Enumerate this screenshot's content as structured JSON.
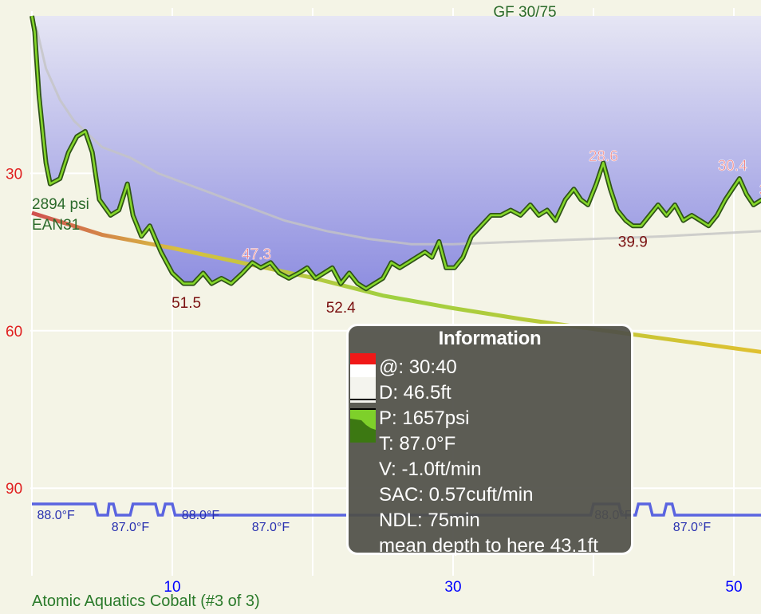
{
  "title": "GF 30/75",
  "footer_label": "Atomic Aquatics Cobalt (#3 of 3)",
  "tank": {
    "pressure": "2894 psi",
    "gas": "EAN31"
  },
  "colors": {
    "background": "#f4f4e6",
    "depth_fill_top": "#a8a8e0",
    "depth_line": "#3f6e1f",
    "depth_line_highlight": "#7fd020",
    "ceiling": "#c2c2c2",
    "pressure_line": "#b8c840",
    "temperature_line": "#5a64e0",
    "depth_axis_text": "#e02020",
    "time_axis_text": "#0000ff",
    "annotation_max": "#7a1010",
    "annotation_min": "#f08080",
    "temp_label": "#2830b0",
    "title_text": "#2a6a2a"
  },
  "chart_data": {
    "type": "line",
    "xlabel": "",
    "ylabel": "",
    "x_ticks": [
      "10",
      "30",
      "50"
    ],
    "y_ticks": [
      "30",
      "60",
      "90"
    ],
    "xlim": [
      0,
      52
    ],
    "ylim": [
      0,
      105
    ],
    "y_inverted": true,
    "grid": true,
    "series": [
      {
        "name": "depth",
        "unit": "ft",
        "points": [
          [
            0,
            0
          ],
          [
            0.2,
            3
          ],
          [
            0.5,
            15
          ],
          [
            0.8,
            23
          ],
          [
            1.0,
            28
          ],
          [
            1.3,
            32
          ],
          [
            2.0,
            31
          ],
          [
            2.6,
            26
          ],
          [
            3.2,
            23
          ],
          [
            3.8,
            22
          ],
          [
            4.3,
            26
          ],
          [
            4.8,
            35
          ],
          [
            5.6,
            38
          ],
          [
            6.2,
            37
          ],
          [
            6.8,
            32
          ],
          [
            7.2,
            38
          ],
          [
            7.8,
            42
          ],
          [
            8.4,
            40
          ],
          [
            9.2,
            45
          ],
          [
            10.0,
            49
          ],
          [
            10.8,
            51
          ],
          [
            11.5,
            51
          ],
          [
            12.2,
            49
          ],
          [
            12.8,
            51
          ],
          [
            13.5,
            50
          ],
          [
            14.2,
            51
          ],
          [
            15.0,
            49
          ],
          [
            15.7,
            47
          ],
          [
            16.3,
            48
          ],
          [
            17.0,
            47
          ],
          [
            17.6,
            49
          ],
          [
            18.3,
            50
          ],
          [
            19.0,
            49
          ],
          [
            19.6,
            48
          ],
          [
            20.2,
            50
          ],
          [
            20.8,
            49
          ],
          [
            21.4,
            48
          ],
          [
            22.0,
            51
          ],
          [
            22.6,
            49
          ],
          [
            23.2,
            51
          ],
          [
            23.8,
            52
          ],
          [
            24.4,
            51
          ],
          [
            25.0,
            50
          ],
          [
            25.6,
            47
          ],
          [
            26.2,
            48
          ],
          [
            26.8,
            47
          ],
          [
            27.4,
            46
          ],
          [
            28.0,
            45
          ],
          [
            28.5,
            46
          ],
          [
            29.0,
            43
          ],
          [
            29.5,
            48
          ],
          [
            30.1,
            48
          ],
          [
            30.7,
            46
          ],
          [
            31.3,
            42
          ],
          [
            32.0,
            40
          ],
          [
            32.7,
            38
          ],
          [
            33.4,
            38
          ],
          [
            34.1,
            37
          ],
          [
            34.8,
            38
          ],
          [
            35.5,
            36
          ],
          [
            36.1,
            38
          ],
          [
            36.7,
            37
          ],
          [
            37.3,
            39
          ],
          [
            38.0,
            35
          ],
          [
            38.6,
            33
          ],
          [
            39.1,
            35
          ],
          [
            39.6,
            36
          ],
          [
            40.2,
            32
          ],
          [
            40.7,
            28
          ],
          [
            41.2,
            33
          ],
          [
            41.7,
            37
          ],
          [
            42.3,
            39
          ],
          [
            42.8,
            40
          ],
          [
            43.4,
            40
          ],
          [
            44.0,
            38
          ],
          [
            44.6,
            36
          ],
          [
            45.2,
            38
          ],
          [
            45.8,
            36
          ],
          [
            46.4,
            39
          ],
          [
            47.0,
            38
          ],
          [
            47.6,
            39
          ],
          [
            48.2,
            40
          ],
          [
            48.8,
            38
          ],
          [
            49.4,
            35
          ],
          [
            49.9,
            33
          ],
          [
            50.4,
            31
          ],
          [
            50.9,
            34
          ],
          [
            51.4,
            36
          ],
          [
            52,
            35
          ]
        ]
      },
      {
        "name": "ceiling",
        "unit": "ft",
        "points": [
          [
            0.3,
            2
          ],
          [
            1.0,
            10
          ],
          [
            2.0,
            16
          ],
          [
            3.0,
            20
          ],
          [
            5.0,
            25
          ],
          [
            7.0,
            27
          ],
          [
            9.0,
            30
          ],
          [
            12.0,
            33
          ],
          [
            15.0,
            36
          ],
          [
            18.0,
            39
          ],
          [
            21.0,
            41
          ],
          [
            24.0,
            42.5
          ],
          [
            27.0,
            43.5
          ],
          [
            30.0,
            43.5
          ],
          [
            35.0,
            43
          ],
          [
            40.0,
            42.5
          ],
          [
            45.0,
            42
          ],
          [
            52.0,
            41
          ]
        ]
      },
      {
        "name": "tank pressure",
        "unit": "psi",
        "points": [
          [
            0,
            2894
          ],
          [
            5,
            2600
          ],
          [
            10,
            2420
          ],
          [
            15,
            2220
          ],
          [
            20,
            2020
          ],
          [
            25,
            1780
          ],
          [
            30,
            1610
          ],
          [
            35,
            1460
          ],
          [
            40,
            1330
          ],
          [
            45,
            1200
          ],
          [
            52,
            1020
          ]
        ]
      },
      {
        "name": "temperature",
        "unit": "°F",
        "points": [
          [
            0,
            88.0
          ],
          [
            4.5,
            88.0
          ],
          [
            4.7,
            87.0
          ],
          [
            5.4,
            87.0
          ],
          [
            5.5,
            88.0
          ],
          [
            5.8,
            88.0
          ],
          [
            6.0,
            87.0
          ],
          [
            7.0,
            87.0
          ],
          [
            7.2,
            88.0
          ],
          [
            8.8,
            88.0
          ],
          [
            9.0,
            87.0
          ],
          [
            9.3,
            87.0
          ],
          [
            9.5,
            88.0
          ],
          [
            10.0,
            88.0
          ],
          [
            10.2,
            87.0
          ],
          [
            39.8,
            87.0
          ],
          [
            40.0,
            88.0
          ],
          [
            41.8,
            88.0
          ],
          [
            42.0,
            87.0
          ],
          [
            43.0,
            87.0
          ],
          [
            43.2,
            88.0
          ],
          [
            44.0,
            88.0
          ],
          [
            44.2,
            87.0
          ],
          [
            45.0,
            87.0
          ],
          [
            45.2,
            88.0
          ],
          [
            45.6,
            88.0
          ],
          [
            45.8,
            87.0
          ],
          [
            52.0,
            87.0
          ]
        ]
      }
    ],
    "depth_annotations": [
      {
        "label": "51.5",
        "kind": "max",
        "x": 11,
        "y": 51.5
      },
      {
        "label": "47.3",
        "kind": "min",
        "x": 16,
        "y": 47.3
      },
      {
        "label": "52.4",
        "kind": "max",
        "x": 22,
        "y": 52.4
      },
      {
        "label": "28.6",
        "kind": "min",
        "x": 40.7,
        "y": 28.6
      },
      {
        "label": "39.9",
        "kind": "max",
        "x": 42.8,
        "y": 39.9
      },
      {
        "label": "30.4",
        "kind": "min",
        "x": 49.9,
        "y": 30.4
      },
      {
        "label": "3",
        "kind": "min",
        "x": 52.1,
        "y": 35
      }
    ],
    "temperature_labels": [
      {
        "label": "88.0°F",
        "x": 0.2
      },
      {
        "label": "87.0°F",
        "x": 5.5
      },
      {
        "label": "88.0°F",
        "x": 10.5
      },
      {
        "label": "87.0°F",
        "x": 15.5
      },
      {
        "label": "88.0°F",
        "x": 39.9
      },
      {
        "label": "87.0°F",
        "x": 45.5
      }
    ]
  },
  "info": {
    "title": "Information",
    "lines": [
      "@: 30:40",
      "D: 46.5ft",
      "P: 1657psi",
      "T: 87.0°F",
      "V: -1.0ft/min",
      "SAC: 0.57cuft/min",
      "NDL: 75min",
      "mean depth to here 43.1ft"
    ]
  }
}
